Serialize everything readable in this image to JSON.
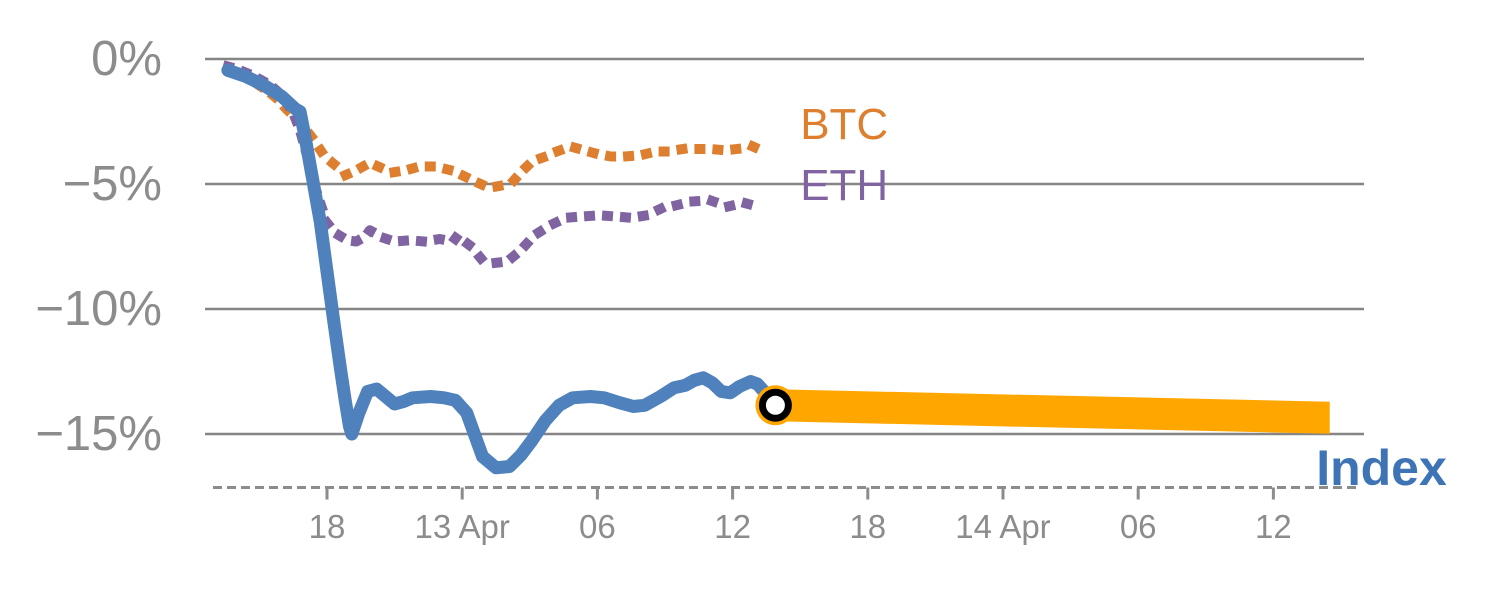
{
  "chart_data": {
    "type": "line",
    "title": "",
    "description": "Drawdown (%) of BTC, ETH and a blue Index line over time, with an orange projection band extending the Index forward from a circled end-point marker.",
    "x_axis": {
      "unit": "hours (6-hour ticks, t=0 at first '18' tick)",
      "ticks": [
        {
          "t": 0,
          "label": "18"
        },
        {
          "t": 6,
          "label": "13 Apr"
        },
        {
          "t": 12,
          "label": "06"
        },
        {
          "t": 18,
          "label": "12"
        },
        {
          "t": 24,
          "label": "18"
        },
        {
          "t": 30,
          "label": "14 Apr"
        },
        {
          "t": 36,
          "label": "06"
        },
        {
          "t": 42,
          "label": "12"
        }
      ]
    },
    "y_axis": {
      "unit": "%",
      "range": [
        -17.5,
        0.6
      ],
      "grid": true,
      "ticks": [
        {
          "v": 0,
          "label": "0%"
        },
        {
          "v": -5,
          "label": "−5%"
        },
        {
          "v": -10,
          "label": "−10%"
        },
        {
          "v": -15,
          "label": "−15%"
        }
      ]
    },
    "colors": {
      "btc": "#DE7F2F",
      "eth": "#8064A2",
      "index_line": "#4F81BD",
      "index_label": "#3E74B5",
      "band": "#FFA700",
      "grid": "#858585",
      "axis_text": "#8C8C8C",
      "marker_ring": "#000000",
      "marker_core": "#FFFFFF"
    },
    "series": [
      {
        "name": "BTC",
        "style": "dotted",
        "color": "#DE7F2F",
        "points": [
          [
            -4.4,
            -0.35
          ],
          [
            -4.0,
            -0.55
          ],
          [
            -3.5,
            -0.75
          ],
          [
            -3.1,
            -1.0
          ],
          [
            -2.6,
            -1.3
          ],
          [
            -2.2,
            -1.6
          ],
          [
            -1.8,
            -2.0
          ],
          [
            -1.4,
            -2.35
          ],
          [
            -1.0,
            -2.75
          ],
          [
            -0.7,
            -3.1
          ],
          [
            -0.4,
            -3.5
          ],
          [
            -0.1,
            -3.9
          ],
          [
            0.3,
            -4.2
          ],
          [
            0.8,
            -4.65
          ],
          [
            1.3,
            -4.45
          ],
          [
            1.9,
            -4.15
          ],
          [
            2.4,
            -4.35
          ],
          [
            2.8,
            -4.55
          ],
          [
            3.5,
            -4.45
          ],
          [
            4.1,
            -4.3
          ],
          [
            4.8,
            -4.3
          ],
          [
            5.5,
            -4.45
          ],
          [
            6.0,
            -4.65
          ],
          [
            6.7,
            -4.95
          ],
          [
            7.2,
            -5.15
          ],
          [
            7.8,
            -5.05
          ],
          [
            8.3,
            -4.85
          ],
          [
            8.7,
            -4.45
          ],
          [
            9.1,
            -4.1
          ],
          [
            9.7,
            -3.9
          ],
          [
            10.2,
            -3.7
          ],
          [
            10.8,
            -3.5
          ],
          [
            11.4,
            -3.65
          ],
          [
            12.0,
            -3.8
          ],
          [
            12.6,
            -3.9
          ],
          [
            13.2,
            -3.9
          ],
          [
            13.9,
            -3.85
          ],
          [
            14.6,
            -3.7
          ],
          [
            15.1,
            -3.7
          ],
          [
            15.8,
            -3.6
          ],
          [
            16.4,
            -3.6
          ],
          [
            17.0,
            -3.6
          ],
          [
            17.7,
            -3.65
          ],
          [
            18.2,
            -3.6
          ],
          [
            18.9,
            -3.5
          ],
          [
            19.4,
            -3.7
          ]
        ]
      },
      {
        "name": "ETH",
        "style": "dotted",
        "color": "#8064A2",
        "points": [
          [
            -4.4,
            -0.3
          ],
          [
            -4.0,
            -0.4
          ],
          [
            -3.3,
            -0.65
          ],
          [
            -2.5,
            -1.05
          ],
          [
            -2.0,
            -1.45
          ],
          [
            -1.5,
            -2.15
          ],
          [
            -1.2,
            -2.85
          ],
          [
            -1.0,
            -3.5
          ],
          [
            -0.75,
            -4.3
          ],
          [
            -0.55,
            -5.05
          ],
          [
            -0.3,
            -5.75
          ],
          [
            0.0,
            -6.55
          ],
          [
            0.35,
            -6.95
          ],
          [
            0.9,
            -7.25
          ],
          [
            1.3,
            -7.3
          ],
          [
            1.7,
            -7.1
          ],
          [
            1.9,
            -6.85
          ],
          [
            2.2,
            -7.0
          ],
          [
            2.5,
            -7.15
          ],
          [
            3.0,
            -7.3
          ],
          [
            3.7,
            -7.25
          ],
          [
            4.3,
            -7.3
          ],
          [
            5.0,
            -7.2
          ],
          [
            5.6,
            -7.3
          ],
          [
            5.8,
            -7.05
          ],
          [
            6.1,
            -7.3
          ],
          [
            6.4,
            -7.5
          ],
          [
            6.9,
            -8.05
          ],
          [
            7.5,
            -8.15
          ],
          [
            8.0,
            -8.1
          ],
          [
            8.6,
            -7.65
          ],
          [
            9.2,
            -7.05
          ],
          [
            9.9,
            -6.65
          ],
          [
            10.6,
            -6.35
          ],
          [
            11.3,
            -6.3
          ],
          [
            12.1,
            -6.25
          ],
          [
            12.8,
            -6.3
          ],
          [
            13.5,
            -6.35
          ],
          [
            14.2,
            -6.25
          ],
          [
            14.9,
            -5.95
          ],
          [
            15.5,
            -5.85
          ],
          [
            16.2,
            -5.7
          ],
          [
            17.0,
            -5.65
          ],
          [
            17.8,
            -5.9
          ],
          [
            18.5,
            -5.75
          ],
          [
            19.1,
            -5.9
          ]
        ]
      },
      {
        "name": "Index",
        "style": "solid",
        "color": "#4F81BD",
        "points": [
          [
            -4.4,
            -0.45
          ],
          [
            -3.6,
            -0.7
          ],
          [
            -2.8,
            -1.05
          ],
          [
            -2.0,
            -1.5
          ],
          [
            -1.4,
            -2.0
          ],
          [
            -1.2,
            -2.1
          ],
          [
            -1.0,
            -3.0
          ],
          [
            -0.6,
            -5.0
          ],
          [
            -0.3,
            -6.5
          ],
          [
            0.0,
            -8.5
          ],
          [
            0.3,
            -10.5
          ],
          [
            0.6,
            -12.4
          ],
          [
            0.8,
            -13.6
          ],
          [
            1.0,
            -14.7
          ],
          [
            1.1,
            -15.0
          ],
          [
            1.4,
            -14.2
          ],
          [
            1.8,
            -13.3
          ],
          [
            2.2,
            -13.2
          ],
          [
            2.6,
            -13.5
          ],
          [
            3.0,
            -13.8
          ],
          [
            3.4,
            -13.7
          ],
          [
            3.8,
            -13.55
          ],
          [
            4.6,
            -13.5
          ],
          [
            5.2,
            -13.55
          ],
          [
            5.7,
            -13.65
          ],
          [
            6.2,
            -14.15
          ],
          [
            6.9,
            -15.9
          ],
          [
            7.5,
            -16.35
          ],
          [
            8.1,
            -16.3
          ],
          [
            8.6,
            -15.85
          ],
          [
            9.1,
            -15.25
          ],
          [
            9.7,
            -14.45
          ],
          [
            10.3,
            -13.85
          ],
          [
            10.9,
            -13.55
          ],
          [
            11.7,
            -13.5
          ],
          [
            12.3,
            -13.55
          ],
          [
            13.0,
            -13.75
          ],
          [
            13.6,
            -13.9
          ],
          [
            14.1,
            -13.85
          ],
          [
            14.8,
            -13.5
          ],
          [
            15.4,
            -13.15
          ],
          [
            15.9,
            -13.05
          ],
          [
            16.3,
            -12.85
          ],
          [
            16.7,
            -12.75
          ],
          [
            17.1,
            -12.95
          ],
          [
            17.5,
            -13.3
          ],
          [
            17.9,
            -13.35
          ],
          [
            18.3,
            -13.1
          ],
          [
            18.8,
            -12.9
          ],
          [
            19.1,
            -13.0
          ],
          [
            19.6,
            -13.5
          ],
          [
            19.9,
            -13.85
          ]
        ]
      }
    ],
    "projection_band": {
      "series": "Index",
      "color": "#FFA700",
      "start_t": 19.9,
      "end_t": 44.5,
      "center_start": -13.85,
      "center_end": -14.35,
      "half_width": 0.64
    },
    "marker": {
      "t": 19.9,
      "value": -13.85,
      "fill": "#FFA700",
      "ring": "#000000",
      "core": "#FFFFFF"
    },
    "annotations": [
      {
        "text": "BTC",
        "t": 21.0,
        "value": -2.64,
        "color": "#DE7F2F"
      },
      {
        "text": "ETH",
        "t": 21.0,
        "value": -5.08,
        "color": "#8064A2"
      },
      {
        "text": "Index",
        "t": 43.9,
        "value": -16.35,
        "color": "#3E74B5"
      }
    ]
  }
}
